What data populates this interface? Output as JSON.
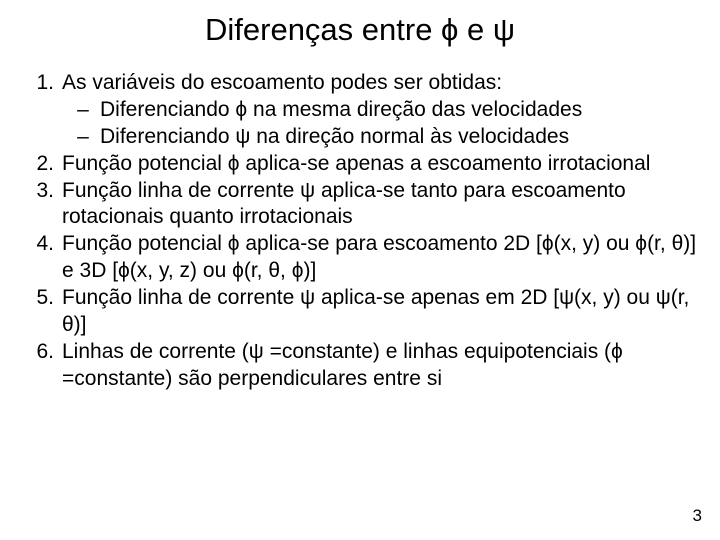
{
  "title": "Diferenças entre  ϕ e ψ",
  "items": [
    {
      "n": "1.",
      "text": "As variáveis do escoamento podes ser obtidas:",
      "subs": [
        "Diferenciando ϕ na mesma direção das velocidades",
        "Diferenciando ψ na  direção normal às velocidades"
      ]
    },
    {
      "n": "2.",
      "text": "Função potencial ϕ aplica-se apenas a escoamento irrotacional"
    },
    {
      "n": "3.",
      "text": "Função linha de corrente ψ aplica-se tanto para escoamento rotacionais quanto irrotacionais"
    },
    {
      "n": "4.",
      "text": "Função potencial ϕ aplica-se para escoamento 2D  [ϕ(x, y) ou ϕ(r, θ)] e 3D [ϕ(x, y, z) ou ϕ(r, θ, ϕ)]"
    },
    {
      "n": "5.",
      "text": "Função linha de corrente ψ aplica-se apenas em 2D [ψ(x, y) ou ψ(r, θ)]"
    },
    {
      "n": "6.",
      "text": "Linhas de corrente (ψ =constante) e linhas equipotenciais (ϕ =constante) são perpendiculares entre si"
    }
  ],
  "page_number": "3",
  "colors": {
    "bg": "#ffffff",
    "text": "#000000"
  },
  "fonts": {
    "title_size": 31,
    "body_size": 21,
    "footer_size": 17
  }
}
